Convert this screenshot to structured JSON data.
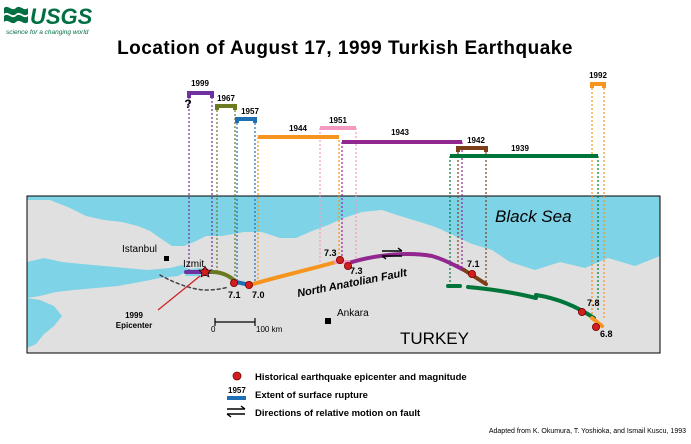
{
  "logo": {
    "name": "USGS",
    "tagline": "science for a changing world"
  },
  "title": "Location of August 17, 1999 Turkish Earthquake",
  "rupture_labels": {
    "r1999": "1999",
    "question": "?",
    "r1967": "1967",
    "r1957": "1957",
    "r1944": "1944",
    "r1951": "1951",
    "r1943": "1943",
    "r1942": "1942",
    "r1939": "1939",
    "r1992": "1992"
  },
  "rupture_colors": {
    "r1999": "#7030a0",
    "r1967": "#6b7a1e",
    "r1957": "#1f6fb5",
    "r1944": "#f7941d",
    "r1951": "#f49ac1",
    "r1943": "#92278f",
    "r1942": "#7b3f1a",
    "r1939": "#00753a",
    "r1992": "#f7941d"
  },
  "map": {
    "sea_label": "Black Sea",
    "country_label": "TURKEY",
    "fault_label": "North Anatolian Fault",
    "cities": {
      "istanbul": "Istanbul",
      "izmit": "Izmit",
      "ankara": "Ankara"
    },
    "epicenter_label_line1": "1999",
    "epicenter_label_line2": "Epicenter",
    "scale_zero": "0",
    "scale_end": "100 km",
    "colors": {
      "land": "#e0e0e0",
      "water": "#7fd3e6"
    }
  },
  "magnitudes": {
    "m1": "7.1",
    "m2": "7.0",
    "m3": "7.3",
    "m4": "7.3",
    "m5": "7.1",
    "m6": "7.8",
    "m7": "6.8"
  },
  "legend": {
    "epicenter_text": "Historical earthquake epicenter and magnitude",
    "rupture_year": "1957",
    "rupture_text": "Extent of surface rupture",
    "motion_text": "Directions of relative motion on fault"
  },
  "credit": "Adapted from K. Okumura, T. Yoshioka, and Ismail Kuscu, 1993"
}
